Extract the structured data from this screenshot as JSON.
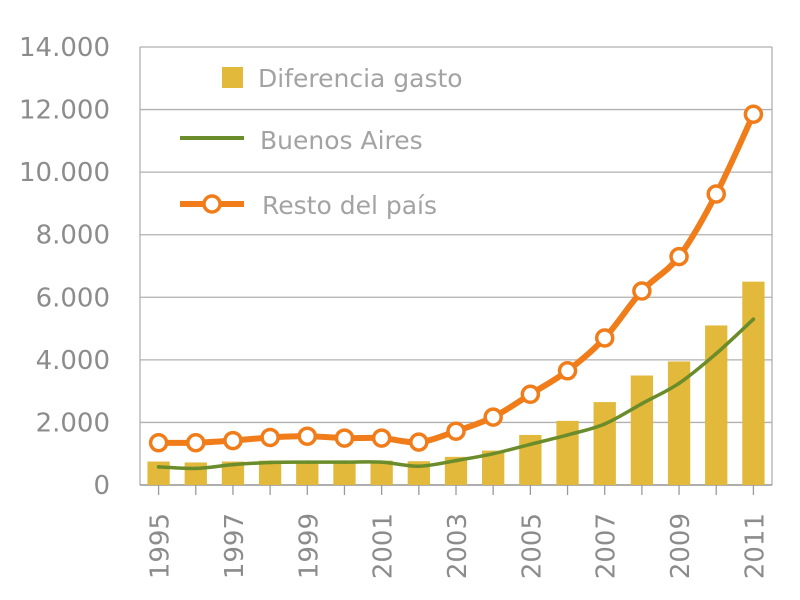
{
  "chart_data": {
    "type": "bar",
    "title": "",
    "xlabel": "",
    "ylabel": "",
    "ylim": [
      0,
      14000
    ],
    "yticks": [
      0,
      2000,
      4000,
      6000,
      8000,
      10000,
      12000,
      14000
    ],
    "ytick_labels": [
      "0",
      "2.000",
      "4.000",
      "6.000",
      "8.000",
      "10.000",
      "12.000",
      "14.000"
    ],
    "x": [
      1995,
      1996,
      1997,
      1998,
      1999,
      2000,
      2001,
      2002,
      2003,
      2004,
      2005,
      2006,
      2007,
      2008,
      2009,
      2010,
      2011
    ],
    "xtick_labels": [
      "1995",
      "1997",
      "1999",
      "2001",
      "2003",
      "2005",
      "2007",
      "2009",
      "2011"
    ],
    "grid": true,
    "legend_position": "top-left",
    "series": [
      {
        "name": "Diferencia gasto",
        "type": "bar",
        "color": "#e2b93b",
        "values": [
          750,
          720,
          750,
          780,
          780,
          780,
          780,
          760,
          900,
          1100,
          1600,
          2050,
          2650,
          3500,
          3950,
          5100,
          6500
        ]
      },
      {
        "name": "Buenos Aires",
        "type": "line",
        "color": "#6b8c2a",
        "values": [
          580,
          530,
          650,
          720,
          730,
          730,
          730,
          600,
          780,
          1000,
          1300,
          1600,
          1950,
          2600,
          3250,
          4200,
          5300
        ]
      },
      {
        "name": "Resto del país",
        "type": "line-marker",
        "color": "#f07d1a",
        "values": [
          1350,
          1350,
          1420,
          1520,
          1560,
          1500,
          1500,
          1370,
          1720,
          2170,
          2900,
          3650,
          4700,
          6200,
          7300,
          9300,
          11850
        ]
      }
    ]
  }
}
